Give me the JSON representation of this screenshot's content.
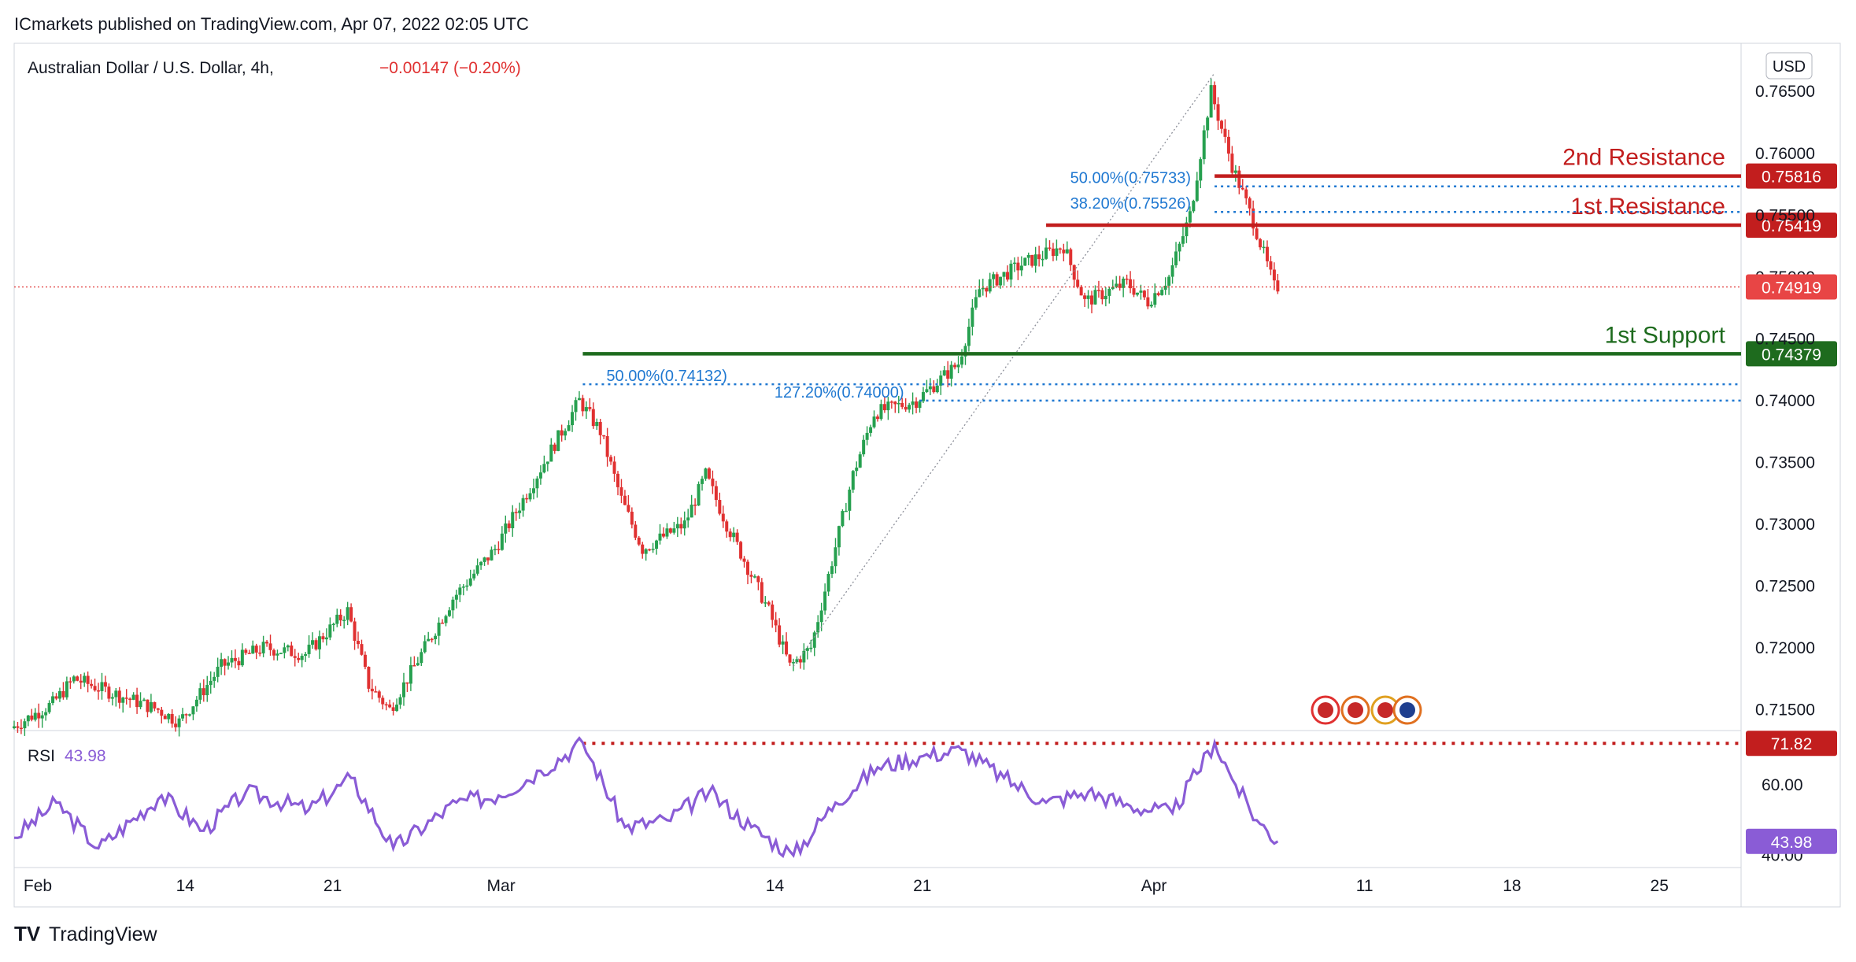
{
  "header": {
    "publisher": "ICmarkets published on TradingView.com, Apr 07, 2022 02:05 UTC"
  },
  "chart_header": {
    "symbol": "Australian Dollar / U.S. Dollar, 4h,",
    "change": "−0.00147 (−0.20%)"
  },
  "currency_label": "USD",
  "footer": {
    "brand": "TradingView"
  },
  "colors": {
    "up": "#26a04f",
    "down": "#e03131",
    "resistance": "#c21e1e",
    "support": "#1e6b1e",
    "fib": "#1f78d1",
    "rsi": "#8a5cd6",
    "axis_text": "#131722",
    "grid": "#e0e3eb"
  },
  "chart_data": [
    {
      "type": "candlestick",
      "title": "Australian Dollar / U.S. Dollar, 4h",
      "ylim": [
        0.7135,
        0.7689
      ],
      "y_ticks": [
        "0.76500",
        "0.76000",
        "0.75500",
        "0.75000",
        "0.74500",
        "0.74000",
        "0.73500",
        "0.73000",
        "0.72500",
        "0.72000",
        "0.71500"
      ],
      "x_ticks": [
        "Feb",
        "14",
        "21",
        "Mar",
        "14",
        "21",
        "Apr",
        "11",
        "18",
        "25"
      ],
      "x_tick_dates": [
        "2022-02-07",
        "2022-02-14",
        "2022-02-21",
        "2022-03-01",
        "2022-03-14",
        "2022-03-21",
        "2022-04-01",
        "2022-04-11",
        "2022-04-18",
        "2022-04-25"
      ],
      "x_range": [
        "2022-02-07",
        "2022-04-30"
      ],
      "price_path": [
        [
          "2022-02-07",
          0.7135
        ],
        [
          "2022-02-09",
          0.7155
        ],
        [
          "2022-02-10",
          0.7175
        ],
        [
          "2022-02-14",
          0.715
        ],
        [
          "2022-02-15",
          0.714
        ],
        [
          "2022-02-17",
          0.7185
        ],
        [
          "2022-02-19",
          0.72
        ],
        [
          "2022-02-21",
          0.7195
        ],
        [
          "2022-02-23",
          0.723
        ],
        [
          "2022-02-24",
          0.717
        ],
        [
          "2022-02-25",
          0.715
        ],
        [
          "2022-02-28",
          0.724
        ],
        [
          "2022-03-02",
          0.728
        ],
        [
          "2022-03-04",
          0.734
        ],
        [
          "2022-03-06",
          0.74
        ],
        [
          "2022-03-07",
          0.7375
        ],
        [
          "2022-03-08",
          0.732
        ],
        [
          "2022-03-09",
          0.728
        ],
        [
          "2022-03-11",
          0.73
        ],
        [
          "2022-03-12",
          0.734
        ],
        [
          "2022-03-13",
          0.73
        ],
        [
          "2022-03-15",
          0.723
        ],
        [
          "2022-03-16",
          0.7185
        ],
        [
          "2022-03-17",
          0.72
        ],
        [
          "2022-03-18",
          0.727
        ],
        [
          "2022-03-19",
          0.734
        ],
        [
          "2022-03-20",
          0.739
        ],
        [
          "2022-03-22",
          0.74
        ],
        [
          "2022-03-24",
          0.743
        ],
        [
          "2022-03-25",
          0.749
        ],
        [
          "2022-03-27",
          0.751
        ],
        [
          "2022-03-29",
          0.7525
        ],
        [
          "2022-03-30",
          0.748
        ],
        [
          "2022-04-01",
          0.7495
        ],
        [
          "2022-04-02",
          0.748
        ],
        [
          "2022-04-03",
          0.75
        ],
        [
          "2022-04-04",
          0.755
        ],
        [
          "2022-04-05",
          0.765
        ],
        [
          "2022-04-06",
          0.759
        ],
        [
          "2022-04-07",
          0.7545
        ],
        [
          "2022-04-08",
          0.7492
        ]
      ],
      "last_price": 0.74919,
      "levels": [
        {
          "name": "2nd Resistance",
          "value": 0.75816,
          "label": "0.75816",
          "role": "resistance",
          "from": "2022-04-05"
        },
        {
          "name": "1st Resistance",
          "value": 0.75419,
          "label": "0.75419",
          "role": "resistance",
          "from": "2022-03-28"
        },
        {
          "name": "1st Support",
          "value": 0.74379,
          "label": "0.74379",
          "role": "support",
          "from": "2022-03-06"
        }
      ],
      "fib_levels": [
        {
          "label": "50.00%(0.75733)",
          "value": 0.75733,
          "from": "2022-04-05"
        },
        {
          "label": "38.20%(0.75526)",
          "value": 0.75526,
          "from": "2022-04-05"
        },
        {
          "label": "50.00%(0.74132)",
          "value": 0.74132,
          "from": "2022-03-06"
        },
        {
          "label": "127.20%(0.74000)",
          "value": 0.74,
          "from": "2022-03-22"
        }
      ],
      "trendline": {
        "from": [
          "2022-03-16",
          0.7185
        ],
        "to": [
          "2022-04-05",
          0.7665
        ]
      }
    },
    {
      "type": "line",
      "title": "RSI",
      "value_label": "43.98",
      "current": 43.98,
      "overbought": 71.82,
      "overbought_label": "71.82",
      "ylim": [
        37,
        75
      ],
      "y_ticks": [
        "60.00",
        "40.00"
      ],
      "path": [
        [
          "2022-02-07",
          45
        ],
        [
          "2022-02-09",
          55
        ],
        [
          "2022-02-11",
          42
        ],
        [
          "2022-02-14",
          57
        ],
        [
          "2022-02-16",
          47
        ],
        [
          "2022-02-18",
          58
        ],
        [
          "2022-02-21",
          53
        ],
        [
          "2022-02-23",
          62
        ],
        [
          "2022-02-25",
          42
        ],
        [
          "2022-02-28",
          55
        ],
        [
          "2022-03-02",
          57
        ],
        [
          "2022-03-04",
          64
        ],
        [
          "2022-03-06",
          72
        ],
        [
          "2022-03-08",
          48
        ],
        [
          "2022-03-10",
          50
        ],
        [
          "2022-03-12",
          58
        ],
        [
          "2022-03-14",
          48
        ],
        [
          "2022-03-16",
          40
        ],
        [
          "2022-03-18",
          55
        ],
        [
          "2022-03-20",
          65
        ],
        [
          "2022-03-22",
          68
        ],
        [
          "2022-03-24",
          70
        ],
        [
          "2022-03-26",
          62
        ],
        [
          "2022-03-28",
          55
        ],
        [
          "2022-03-30",
          58
        ],
        [
          "2022-04-01",
          54
        ],
        [
          "2022-04-03",
          52
        ],
        [
          "2022-04-05",
          72
        ],
        [
          "2022-04-06",
          60
        ],
        [
          "2022-04-07",
          50
        ],
        [
          "2022-04-08",
          43.98
        ]
      ]
    }
  ]
}
